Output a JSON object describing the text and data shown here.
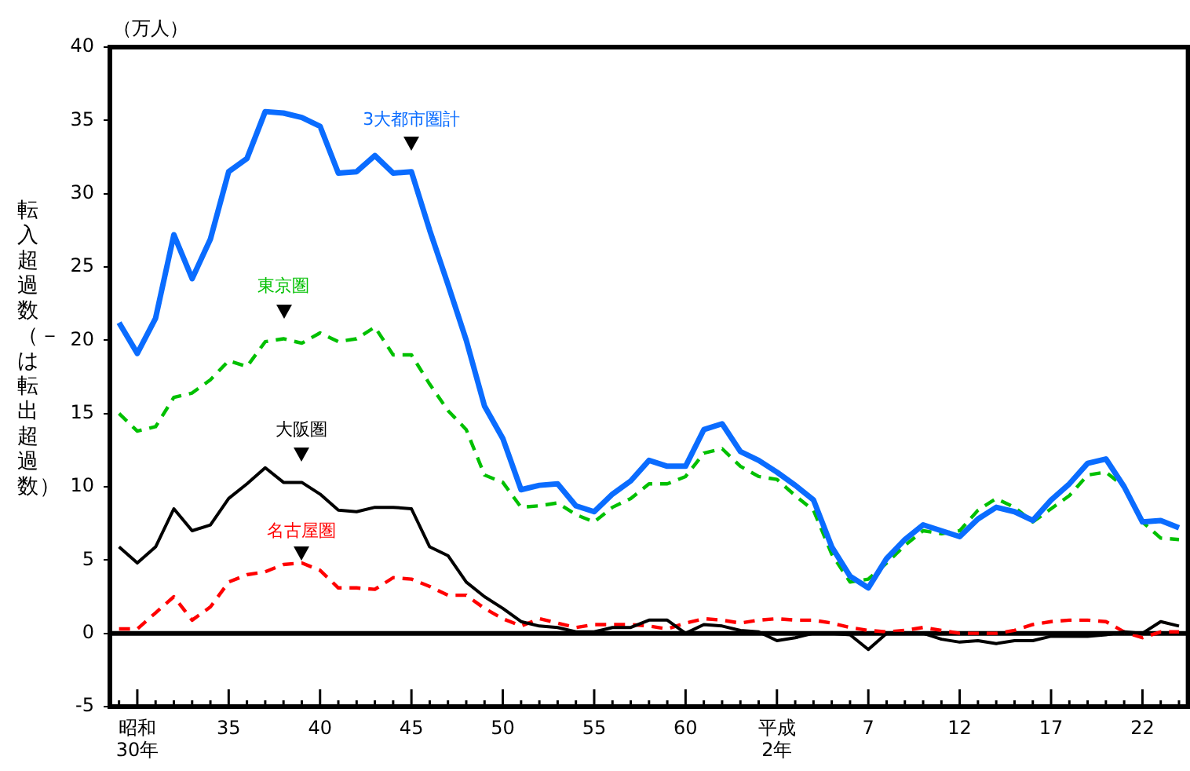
{
  "chart_data": {
    "type": "line",
    "ylabel": "転入超過数（－は転出超過数）",
    "annotations": [
      "（万人）"
    ],
    "categories": [
      null,
      "昭和\n30年",
      null,
      null,
      null,
      null,
      "35",
      null,
      null,
      null,
      null,
      "40",
      null,
      null,
      null,
      null,
      "45",
      null,
      null,
      null,
      null,
      "50",
      null,
      null,
      null,
      null,
      "55",
      null,
      null,
      null,
      null,
      "60",
      null,
      null,
      null,
      null,
      "平成\n2年",
      null,
      null,
      null,
      null,
      "7",
      null,
      null,
      null,
      null,
      "12",
      null,
      null,
      null,
      null,
      "17",
      null,
      null,
      null,
      null,
      "22",
      null,
      null
    ],
    "series": [
      {
        "name": "3大都市圏計",
        "color": "#0a6cff",
        "line_style": "solid",
        "values": [
          21.2,
          19.1,
          21.5,
          27.2,
          24.2,
          26.9,
          31.5,
          32.4,
          35.6,
          35.5,
          35.2,
          34.6,
          31.4,
          31.5,
          32.6,
          31.4,
          31.5,
          27.5,
          23.8,
          20.0,
          15.5,
          13.3,
          9.8,
          10.1,
          10.2,
          8.7,
          8.3,
          9.5,
          10.4,
          11.8,
          11.4,
          11.4,
          13.9,
          14.3,
          12.4,
          11.8,
          11.0,
          10.1,
          9.1,
          5.9,
          3.9,
          3.1,
          5.1,
          6.4,
          7.4,
          7.0,
          6.6,
          7.8,
          8.6,
          8.3,
          7.7,
          9.1,
          10.2,
          11.6,
          11.9,
          10.0,
          7.6,
          7.7,
          7.2
        ]
      },
      {
        "name": "東京圏",
        "color": "#00c000",
        "line_style": "dashed",
        "values": [
          15.0,
          13.8,
          14.1,
          16.1,
          16.4,
          17.3,
          18.6,
          18.2,
          19.9,
          20.1,
          19.8,
          20.5,
          19.9,
          20.1,
          20.9,
          19.0,
          19.0,
          17.0,
          15.2,
          13.9,
          10.8,
          10.3,
          8.6,
          8.7,
          8.9,
          8.1,
          7.6,
          8.6,
          9.2,
          10.2,
          10.2,
          10.7,
          12.3,
          12.6,
          11.4,
          10.7,
          10.5,
          9.4,
          8.4,
          5.4,
          3.5,
          3.7,
          4.8,
          6.0,
          7.0,
          6.8,
          7.0,
          8.4,
          9.2,
          8.6,
          7.6,
          8.5,
          9.4,
          10.8,
          11.0,
          10.0,
          7.6,
          6.5,
          6.4
        ]
      },
      {
        "name": "大阪圏",
        "color": "#000000",
        "line_style": "solid",
        "values": [
          5.9,
          4.8,
          5.9,
          8.5,
          7.0,
          7.4,
          9.2,
          10.2,
          11.3,
          10.3,
          10.3,
          9.5,
          8.4,
          8.3,
          8.6,
          8.6,
          8.5,
          5.9,
          5.3,
          3.5,
          2.5,
          1.7,
          0.8,
          0.5,
          0.4,
          0.1,
          0.1,
          0.4,
          0.4,
          0.9,
          0.9,
          0.0,
          0.6,
          0.5,
          0.2,
          0.1,
          -0.5,
          -0.3,
          0.0,
          0.0,
          -0.1,
          -1.1,
          0.0,
          0.0,
          0.0,
          -0.4,
          -0.6,
          -0.5,
          -0.7,
          -0.5,
          -0.5,
          -0.2,
          -0.2,
          -0.2,
          -0.1,
          0.1,
          0.0,
          0.8,
          0.5
        ]
      },
      {
        "name": "名古屋圏",
        "color": "#ff0000",
        "line_style": "dashed",
        "values": [
          0.3,
          0.3,
          1.4,
          2.5,
          0.9,
          1.8,
          3.5,
          4.0,
          4.2,
          4.7,
          4.8,
          4.3,
          3.1,
          3.1,
          3.0,
          3.8,
          3.7,
          3.2,
          2.6,
          2.6,
          1.7,
          1.0,
          0.5,
          1.0,
          0.7,
          0.4,
          0.6,
          0.6,
          0.6,
          0.5,
          0.3,
          0.7,
          1.0,
          0.9,
          0.7,
          0.9,
          1.0,
          0.9,
          0.9,
          0.7,
          0.4,
          0.2,
          0.1,
          0.2,
          0.4,
          0.2,
          0.0,
          0.0,
          0.0,
          0.2,
          0.6,
          0.8,
          0.9,
          0.9,
          0.8,
          0.1,
          -0.3,
          0.1,
          0.1
        ]
      }
    ],
    "ylim": [
      -5,
      40
    ],
    "yticks": [
      -5,
      0,
      5,
      10,
      15,
      20,
      25,
      30,
      35,
      40
    ],
    "ref_lines": [
      {
        "axis": "y",
        "value": 0,
        "color": "#000000"
      }
    ],
    "grid": false,
    "legend": false,
    "marker": "none"
  }
}
